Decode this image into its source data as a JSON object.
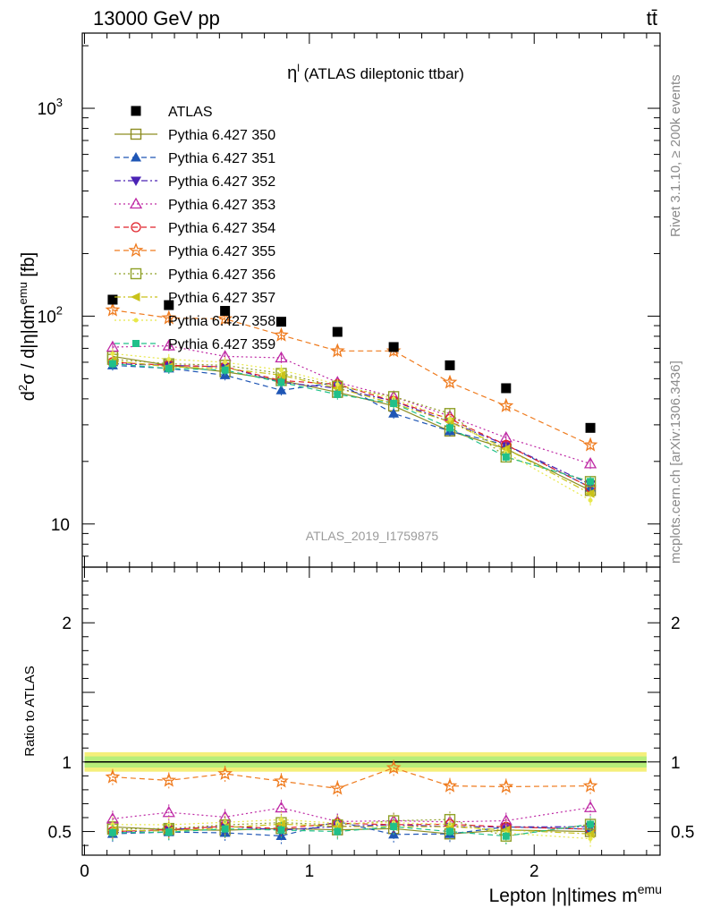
{
  "header": {
    "left": "13000 GeV pp",
    "right": "tt̄"
  },
  "side": {
    "rivet": "Rivet 3.1.10, ≥ 200k events",
    "mcplots": "mcplots.cern.ch [arXiv:1306.3436]"
  },
  "chart_data": {
    "type": "scatter",
    "title": "η^l (ATLAS dileptonic ttbar)",
    "analysis_id": "ATLAS_2019_I1759875",
    "xlabel": "Lepton |η|times m^emu",
    "ylabel": "d²σ / d|η|dm^emu [fb]",
    "ratio_ylabel": "Ratio to ATLAS",
    "xlim": [
      -0.01,
      2.56
    ],
    "ylim": [
      6.2,
      2300
    ],
    "yscale": "log",
    "ratio_ylim": [
      0.33,
      2.4
    ],
    "x_ticks": [
      "0",
      "1",
      "2"
    ],
    "y_ticks": [
      "10",
      "10²",
      "10³"
    ],
    "ratio_ticks": [
      "0.5",
      "1",
      "2"
    ],
    "legend_position": "top-left",
    "x": [
      0.125,
      0.375,
      0.625,
      0.875,
      1.125,
      1.375,
      1.625,
      1.875,
      2.25
    ],
    "reference": {
      "name": "ATLAS",
      "color": "#000000",
      "values": [
        120,
        113,
        106,
        94,
        84,
        71,
        58,
        45,
        29
      ]
    },
    "series": [
      {
        "name": "Pythia 6.427 350",
        "color": "#8d8d22",
        "marker": "square-open",
        "dash": "solid",
        "values": [
          64,
          58,
          54,
          49,
          43,
          37,
          28,
          23,
          14.5
        ]
      },
      {
        "name": "Pythia 6.427 351",
        "color": "#1f56b5",
        "marker": "triangle-up",
        "dash": "dashed",
        "values": [
          58,
          56,
          52,
          44,
          48,
          34,
          28,
          24,
          15
        ]
      },
      {
        "name": "Pythia 6.427 352",
        "color": "#4b23b5",
        "marker": "triangle-down",
        "dash": "dashdot",
        "values": [
          59,
          58,
          57,
          48,
          45,
          39,
          31,
          24,
          15.5
        ]
      },
      {
        "name": "Pythia 6.427 353",
        "color": "#bf2aa5",
        "marker": "triangle-open",
        "dash": "dotted",
        "values": [
          71,
          72,
          64,
          63,
          48,
          41,
          33,
          26,
          19.5
        ]
      },
      {
        "name": "Pythia 6.427 354",
        "color": "#e0222a",
        "marker": "circle-open",
        "dash": "dashed",
        "values": [
          60,
          58,
          57,
          49,
          47,
          39,
          32,
          24,
          15
        ]
      },
      {
        "name": "Pythia 6.427 355",
        "color": "#ef7b1e",
        "marker": "star-open",
        "dash": "dashed",
        "values": [
          107,
          98,
          97,
          81,
          68,
          68,
          48,
          37,
          24
        ]
      },
      {
        "name": "Pythia 6.427 356",
        "color": "#8fa027",
        "marker": "square-open",
        "dash": "dotted",
        "values": [
          62,
          59,
          58,
          53,
          46,
          41,
          34,
          21,
          16
        ]
      },
      {
        "name": "Pythia 6.427 357",
        "color": "#c9c21a",
        "marker": "tri-left",
        "dash": "dashdot",
        "values": [
          61,
          57,
          56,
          52,
          45,
          38,
          31,
          23,
          14
        ]
      },
      {
        "name": "Pythia 6.427 358",
        "color": "#e8e84a",
        "marker": "dot",
        "dash": "dotted",
        "values": [
          66,
          62,
          60,
          55,
          47,
          40,
          32,
          22,
          13
        ]
      },
      {
        "name": "Pythia 6.427 359",
        "color": "#20c08a",
        "marker": "square",
        "dash": "dashed",
        "values": [
          59,
          56,
          55,
          48,
          42,
          38,
          29,
          21,
          16
        ]
      }
    ],
    "band_colors": [
      "#f5ef7a",
      "#b7ee7a"
    ]
  }
}
